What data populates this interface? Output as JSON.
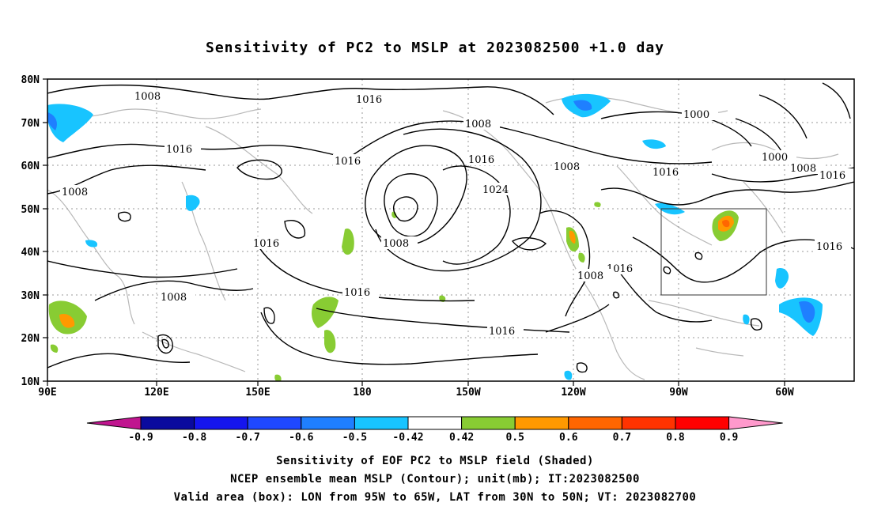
{
  "title": "Sensitivity of PC2 to MSLP at 2023082500 +1.0 day",
  "map": {
    "lat_labels": [
      "80N",
      "70N",
      "60N",
      "50N",
      "40N",
      "30N",
      "20N",
      "10N"
    ],
    "lon_labels": [
      "90E",
      "120E",
      "150E",
      "180",
      "150W",
      "120W",
      "90W",
      "60W"
    ],
    "contour_labels": [
      "1008",
      "1016",
      "1008",
      "1016",
      "1000",
      "1016",
      "1008",
      "1016",
      "1016",
      "1024",
      "1008",
      "1000",
      "1008",
      "1016",
      "1016",
      "1008",
      "1016",
      "1008",
      "1016",
      "1016",
      "1016",
      "1008"
    ],
    "box_label": "valid-area-box"
  },
  "colorbar": {
    "labels": [
      "-0.9",
      "-0.8",
      "-0.7",
      "-0.6",
      "-0.5",
      "-0.42",
      "0.42",
      "0.5",
      "0.6",
      "0.7",
      "0.8",
      "0.9"
    ],
    "colors": [
      "#c0158f",
      "#0a0a9e",
      "#1515ee",
      "#1f48ff",
      "#1f7fff",
      "#18c4ff",
      "#ffffff",
      "#88cc33",
      "#ff9900",
      "#ff6600",
      "#ff3300",
      "#ff0000",
      "#ff99cc"
    ]
  },
  "captions": {
    "line1": "Sensitivity of EOF PC2 to MSLP field (Shaded)",
    "line2": "NCEP ensemble mean MSLP (Contour); unit(mb); IT:2023082500",
    "line3": "Valid area (box): LON from 95W to 65W, LAT from 30N to 50N; VT: 2023082700"
  }
}
